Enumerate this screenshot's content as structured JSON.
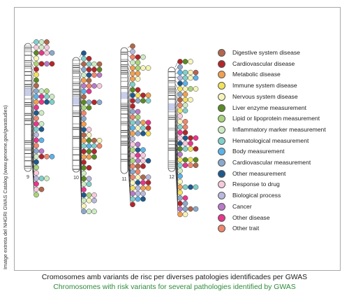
{
  "credit": "Imatge extreta del NHGRI GWAS Catalog (www.genome.gov/gwastudies)",
  "chromosomes": [
    {
      "label": "9",
      "snp_count": 58
    },
    {
      "label": "10",
      "snp_count": 70
    },
    {
      "label": "11",
      "snp_count": 80
    },
    {
      "label": "12",
      "snp_count": 72
    }
  ],
  "legend": [
    {
      "label": "Digestive system disease",
      "color": "#b1674b"
    },
    {
      "label": "Cardiovascular disease",
      "color": "#b3262c"
    },
    {
      "label": "Metabolic disease",
      "color": "#f0a050"
    },
    {
      "label": "Immune system disease",
      "color": "#f3e15a"
    },
    {
      "label": "Nervous system disease",
      "color": "#f6f4b8"
    },
    {
      "label": "Liver enzyme measurement",
      "color": "#5a8a22"
    },
    {
      "label": "Lipid or lipoprotein measurement",
      "color": "#a9d57a"
    },
    {
      "label": "Inflammatory marker measurement",
      "color": "#cdebc2"
    },
    {
      "label": "Hematological measurement",
      "color": "#7fcfca"
    },
    {
      "label": "Body measurement",
      "color": "#5cb3e8"
    },
    {
      "label": "Cardiovascular measurement",
      "color": "#8aa9cc"
    },
    {
      "label": "Other measurement",
      "color": "#1d5a8e"
    },
    {
      "label": "Response to drug",
      "color": "#f7c9dc"
    },
    {
      "label": "Biological process",
      "color": "#b9b9de"
    },
    {
      "label": "Cancer",
      "color": "#b97ac8"
    },
    {
      "label": "Other disease",
      "color": "#e8368b"
    },
    {
      "label": "Other trait",
      "color": "#f0866b"
    }
  ],
  "caption": {
    "catalan": "Cromosomes amb variants de risc per diverses patologies identificades per GWAS",
    "english": "Chromosomes with risk variants for several pathologies identified by GWAS"
  }
}
